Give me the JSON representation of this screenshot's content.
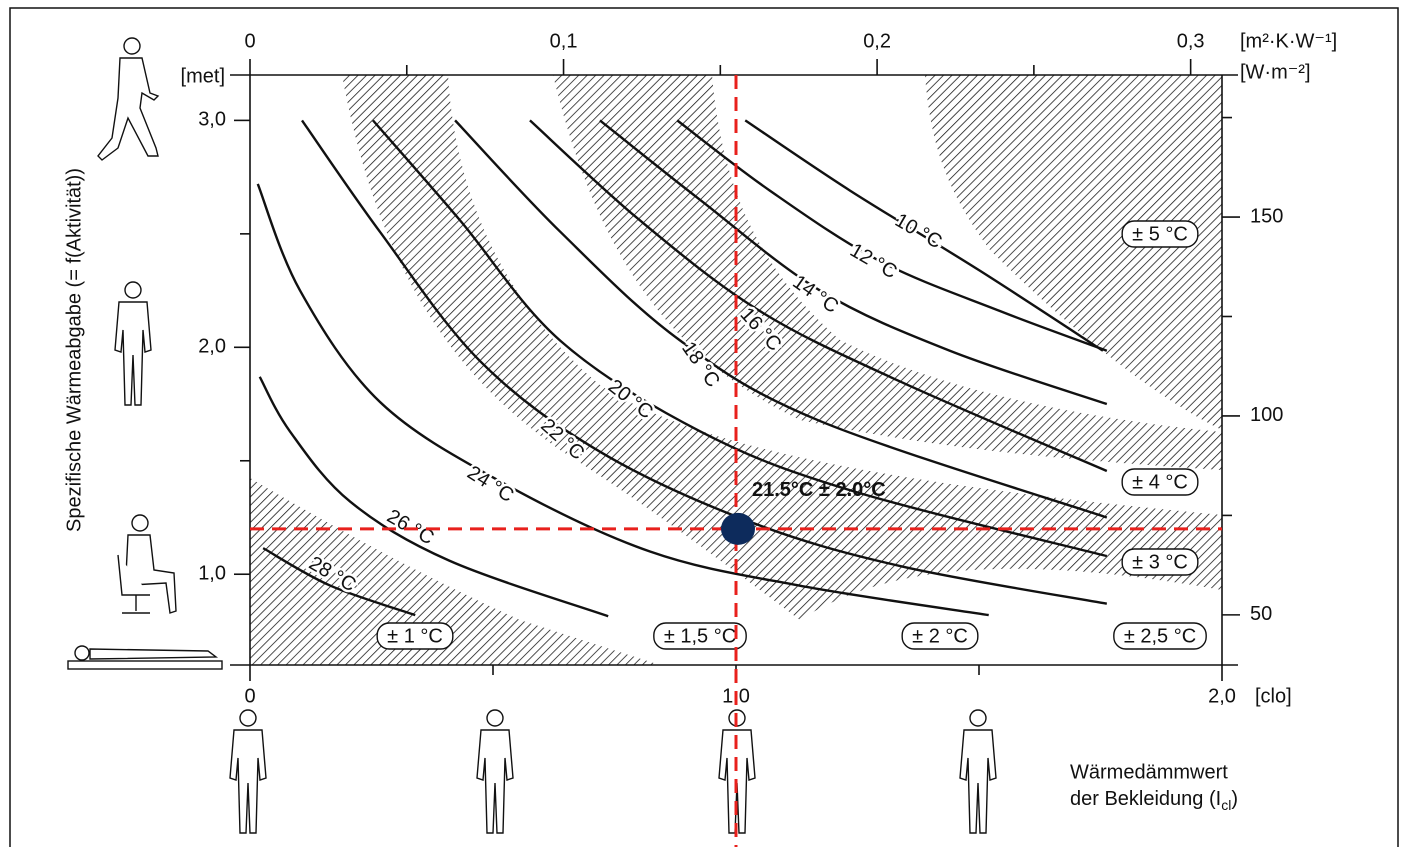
{
  "chart_data": {
    "type": "line",
    "y_label": "Spezifische Wärmeabgabe (= f(Aktivität))",
    "y_unit": "[met]",
    "x_unit": "[clo]",
    "x2_unit": "[m²·K·W⁻¹]",
    "y2_unit": "[W·m⁻²]",
    "x_label": [
      "Wärmedämmwert",
      "der Bekleidung (I",
      "cl",
      ")"
    ],
    "xlim": [
      0,
      2
    ],
    "xticks": [
      0,
      {
        "value": 1.0,
        "label": "1,0"
      },
      {
        "value": 2.0,
        "label": "2,0"
      }
    ],
    "xminor": [
      0.5,
      1.5
    ],
    "ylim": [
      0.6,
      3.2
    ],
    "yticks": [
      {
        "value": 1.0,
        "label": "1,0"
      },
      {
        "value": 2.0,
        "label": "2,0"
      },
      {
        "value": 3.0,
        "label": "3,0"
      }
    ],
    "yminor": [
      1.5,
      2.5
    ],
    "x2lim": [
      0,
      0.31
    ],
    "x2ticks": [
      0,
      {
        "value": 0.1,
        "label": "0,1"
      },
      {
        "value": 0.2,
        "label": "0,2"
      },
      {
        "value": 0.3,
        "label": "0,3"
      }
    ],
    "x2minor": [
      0.05,
      0.15,
      0.25
    ],
    "y2lim": [
      37.4,
      185.7
    ],
    "y2ticks": [
      50,
      100,
      150
    ],
    "y2minor": [
      75,
      125,
      175
    ],
    "series": [
      {
        "name": "10 °C",
        "color": "#111111",
        "x": [
          1.019,
          1.235,
          1.5,
          1.755
        ],
        "values": [
          3.0,
          2.69,
          2.34,
          1.985
        ]
      },
      {
        "name": "12 °C",
        "color": "#111111",
        "x": [
          0.879,
          1.07,
          1.296,
          1.543,
          1.763
        ],
        "values": [
          3.0,
          2.69,
          2.38,
          2.16,
          1.985
        ]
      },
      {
        "name": "14 °C",
        "color": "#111111",
        "x": [
          0.72,
          0.926,
          1.173,
          1.44,
          1.763
        ],
        "values": [
          3.0,
          2.65,
          2.25,
          1.985,
          1.75
        ]
      },
      {
        "name": "16 °C",
        "color": "#111111",
        "x": [
          0.576,
          0.802,
          1.049,
          1.337,
          1.763
        ],
        "values": [
          3.0,
          2.56,
          2.16,
          1.85,
          1.455
        ]
      },
      {
        "name": "18 °C",
        "color": "#111111",
        "x": [
          0.422,
          0.638,
          0.885,
          1.173,
          1.763
        ],
        "values": [
          3.0,
          2.51,
          2.03,
          1.675,
          1.25
        ]
      },
      {
        "name": "20 °C",
        "color": "#111111",
        "x": [
          0.253,
          0.432,
          0.638,
          0.926,
          1.235,
          1.763
        ],
        "values": [
          3.0,
          2.56,
          2.03,
          1.63,
          1.37,
          1.08
        ]
      },
      {
        "name": "22 °C",
        "color": "#111111",
        "x": [
          0.107,
          0.267,
          0.473,
          0.72,
          1.03,
          1.34,
          1.763
        ],
        "values": [
          3.0,
          2.51,
          1.94,
          1.54,
          1.23,
          1.035,
          0.87
        ]
      },
      {
        "name": "24 °C",
        "color": "#111111",
        "x": [
          0.016,
          0.103,
          0.267,
          0.514,
          0.823,
          1.13,
          1.52
        ],
        "values": [
          2.72,
          2.25,
          1.76,
          1.41,
          1.1,
          0.95,
          0.82
        ]
      },
      {
        "name": "26 °C",
        "color": "#111111",
        "x": [
          0.02,
          0.082,
          0.206,
          0.41,
          0.737
        ],
        "values": [
          1.87,
          1.63,
          1.32,
          1.06,
          0.815
        ]
      },
      {
        "name": "28 °C",
        "color": "#111111",
        "x": [
          0.027,
          0.165,
          0.34
        ],
        "values": [
          1.115,
          0.95,
          0.82
        ]
      }
    ],
    "tolerance_labels": [
      "± 1 °C",
      "± 1,5 °C",
      "± 2 °C",
      "± 2,5 °C",
      "± 3 °C",
      "± 4 °C",
      "± 5 °C"
    ],
    "highlight": {
      "x": 1.0,
      "y": 1.2,
      "label": "21.5°C ± 2.0°C",
      "line_color": "#e8201c",
      "marker_color": "#0d2b5c"
    }
  }
}
